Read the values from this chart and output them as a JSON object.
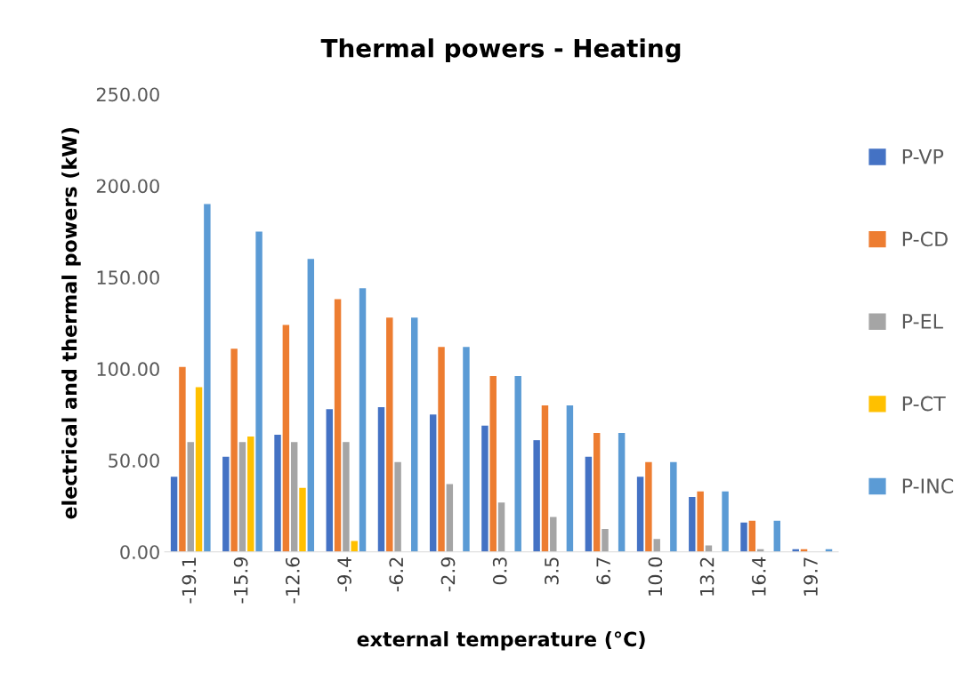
{
  "chart_data": {
    "type": "bar",
    "title": "Thermal powers - Heating",
    "xlabel": "external temperature (°C)",
    "ylabel": "electrical and thermal powers (kW)",
    "categories": [
      "-19.1",
      "-15.9",
      "-12.6",
      "-9.4",
      "-6.2",
      "-2.9",
      "0.3",
      "3.5",
      "6.7",
      "10.0",
      "13.2",
      "16.4",
      "19.7"
    ],
    "series": [
      {
        "name": "P-VP",
        "color": "#4472c4",
        "values": [
          41,
          52,
          64,
          78,
          79,
          75,
          69,
          61,
          52,
          41,
          30,
          16,
          1.5
        ]
      },
      {
        "name": "P-CD",
        "color": "#ed7d31",
        "values": [
          101,
          111,
          124,
          138,
          128,
          112,
          96,
          80,
          65,
          49,
          33,
          17,
          1.5
        ]
      },
      {
        "name": "P-EL",
        "color": "#a5a5a5",
        "values": [
          60,
          60,
          60,
          60,
          49,
          37,
          27,
          19,
          12.5,
          7,
          3.5,
          1.5,
          0
        ]
      },
      {
        "name": "P-CT",
        "color": "#ffc000",
        "values": [
          90,
          63,
          35,
          6,
          0,
          0,
          0,
          0,
          0,
          0,
          0,
          0,
          0
        ]
      },
      {
        "name": "P-INC",
        "color": "#5b9bd5",
        "values": [
          190,
          175,
          160,
          144,
          128,
          112,
          96,
          80,
          65,
          49,
          33,
          17,
          1.5
        ]
      }
    ],
    "ylim": [
      0,
      250
    ],
    "yticks": [
      {
        "value": 0,
        "label": "0.00"
      },
      {
        "value": 50,
        "label": "50.00"
      },
      {
        "value": 100,
        "label": "100.00"
      },
      {
        "value": 150,
        "label": "150.00"
      },
      {
        "value": 200,
        "label": "200.00"
      },
      {
        "value": 250,
        "label": "250.00"
      }
    ],
    "grid": false,
    "legend": "right"
  }
}
